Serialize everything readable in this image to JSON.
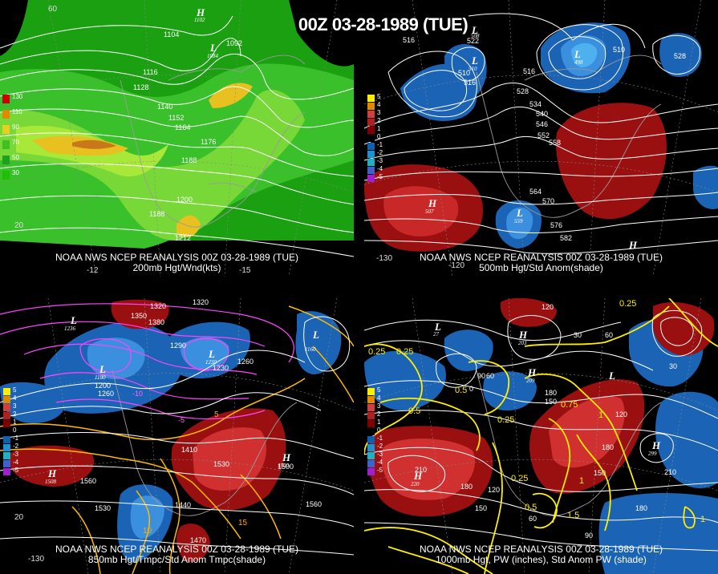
{
  "header": {
    "title": "00Z 03-28-1989 (TUE)"
  },
  "panels": {
    "p1": {
      "caption_line1": "NOAA NWS NCEP REANALYSIS 00Z 03-28-1989 (TUE)",
      "caption_line2": "200mb Hgt/Wnd(kts)",
      "legend": [
        "130",
        "110",
        "90",
        "70",
        "50",
        "30"
      ],
      "legend_colors": [
        "#cc0000",
        "#e08a00",
        "#e8d020",
        "#40c020",
        "#20a020",
        "#20c000"
      ],
      "contour_labels": [
        "1104",
        "1092",
        "1116",
        "1128",
        "1140",
        "1152",
        "1164",
        "1176",
        "1188",
        "1200",
        "1188",
        "1212"
      ],
      "lat_labels": [
        "60",
        "20"
      ],
      "lon_labels": [
        "-12",
        "-15"
      ],
      "pressure_centers": [
        {
          "type": "H",
          "value": "1102"
        },
        {
          "type": "L",
          "value": "1084"
        }
      ]
    },
    "p2": {
      "caption_line1": "NOAA NWS NCEP REANALYSIS 00Z 03-28-1989 (TUE)",
      "caption_line2": "500mb Hgt/Std Anom(shade)",
      "legend": [
        "5",
        "4",
        "3",
        "2",
        "1",
        "0",
        "-1",
        "-2",
        "-3",
        "-4",
        "-5"
      ],
      "legend_colors": [
        "#ffee00",
        "#e08a00",
        "#d04040",
        "#b02020",
        "#800000",
        "#000000",
        "#1060b0",
        "#2090d0",
        "#20b0c0",
        "#4060d0",
        "#a020d0"
      ],
      "contour_labels": [
        "516",
        "522",
        "510",
        "516",
        "516",
        "528",
        "534",
        "540",
        "546",
        "552",
        "558",
        "564",
        "570",
        "576",
        "582",
        "510",
        "528"
      ],
      "lon_labels": [
        "-130",
        "-120"
      ],
      "pressure_centers": [
        {
          "type": "L",
          "value": "508"
        },
        {
          "type": "L",
          "value": "510"
        },
        {
          "type": "H",
          "value": "507"
        },
        {
          "type": "L",
          "value": "559"
        },
        {
          "type": "L",
          "value": "498"
        },
        {
          "type": "H",
          "value": ""
        }
      ]
    },
    "p3": {
      "caption_line1": "NOAA NWS NCEP REANALYSIS 00Z 03-28-1989 (TUE)",
      "caption_line2": "850mb Hgt/Tmpc/Std Anom Tmpc(shade)",
      "legend": [
        "5",
        "4",
        "3",
        "2",
        "1",
        "0",
        "-1",
        "-2",
        "-3",
        "-4",
        "-5"
      ],
      "legend_colors": [
        "#ffee00",
        "#e08a00",
        "#d04040",
        "#b02020",
        "#800000",
        "#000000",
        "#1060b0",
        "#2090d0",
        "#20b0c0",
        "#4060d0",
        "#a020d0"
      ],
      "contour_labels": [
        "1320",
        "1350",
        "1380",
        "1320",
        "1290",
        "1260",
        "1230",
        "1200",
        "1260",
        "1410",
        "1530",
        "1560",
        "1530",
        "1440",
        "1560",
        "1470",
        "1500"
      ],
      "temp_labels": [
        "-10",
        "-5",
        "5",
        "10",
        "15"
      ],
      "lat_labels": [
        "20"
      ],
      "lon_labels": [
        "-130"
      ],
      "pressure_centers": [
        {
          "type": "L",
          "value": "1236"
        },
        {
          "type": "L",
          "value": "1180"
        },
        {
          "type": "L",
          "value": "1230"
        },
        {
          "type": "H",
          "value": "1508"
        },
        {
          "type": "H",
          "value": "1500"
        },
        {
          "type": "L",
          "value": "1160"
        }
      ]
    },
    "p4": {
      "caption_line1": "NOAA NWS NCEP REANALYSIS 00Z 03-28-1989 (TUE)",
      "caption_line2": "1000mb Hgt, PW (inches), Std Anom PW (shade)",
      "legend": [
        "5",
        "4",
        "3",
        "2",
        "1",
        "0",
        "-1",
        "-2",
        "-3",
        "-4",
        "-5"
      ],
      "legend_colors": [
        "#ffee00",
        "#e08a00",
        "#d04040",
        "#b02020",
        "#800000",
        "#000000",
        "#1060b0",
        "#2090d0",
        "#20b0c0",
        "#4060d0",
        "#a020d0"
      ],
      "contour_labels": [
        "120",
        "90",
        "60",
        "30",
        "30",
        "150",
        "180",
        "120",
        "150",
        "180",
        "210",
        "180",
        "150",
        "60",
        "90",
        "120",
        "210",
        "180",
        "60",
        "0"
      ],
      "pw_labels": [
        "0.25",
        "0.25",
        "0.5",
        "0.25",
        "0.75",
        "1",
        "0.5",
        "1.5",
        "0.25",
        "1",
        "0.5",
        "1",
        "0.25"
      ],
      "pressure_centers": [
        {
          "type": "L",
          "value": "27"
        },
        {
          "type": "H",
          "value": "203"
        },
        {
          "type": "H",
          "value": "209"
        },
        {
          "type": "H",
          "value": "220"
        },
        {
          "type": "H",
          "value": "299"
        },
        {
          "type": "L",
          "value": ""
        }
      ]
    }
  }
}
